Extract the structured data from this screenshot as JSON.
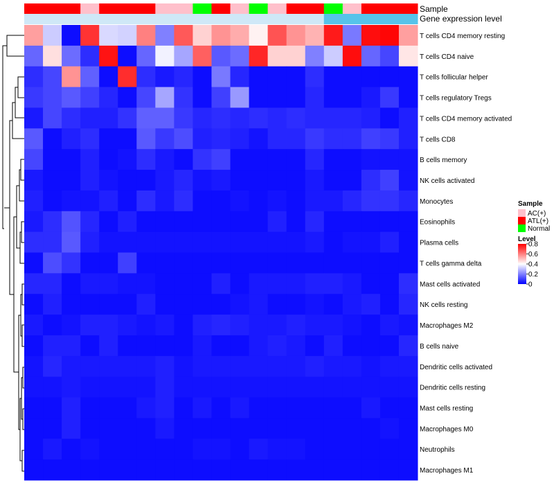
{
  "chart_data": {
    "type": "heatmap",
    "annotation_rows": [
      {
        "label": "Sample",
        "values": [
          "ATL(+)",
          "ATL(+)",
          "ATL(+)",
          "AC(+)",
          "ATL(+)",
          "ATL(+)",
          "ATL(+)",
          "AC(+)",
          "AC(+)",
          "Normal",
          "ATL(+)",
          "AC(+)",
          "Normal",
          "AC(+)",
          "ATL(+)",
          "ATL(+)",
          "Normal",
          "AC(+)",
          "ATL(+)",
          "ATL(+)",
          "ATL(+)"
        ]
      },
      {
        "label": "Gene expression level",
        "values": [
          "low",
          "low",
          "low",
          "low",
          "low",
          "low",
          "low",
          "low",
          "low",
          "low",
          "low",
          "low",
          "low",
          "low",
          "low",
          "low",
          "high",
          "high",
          "high",
          "high",
          "high"
        ]
      }
    ],
    "rows": [
      "T cells CD4 memory resting",
      "T cells CD4 naive",
      "T cells follicular helper",
      "T cells regulatory  Tregs",
      "T cells CD4 memory activated",
      "T cells CD8",
      "B cells memory",
      "NK cells activated",
      "Monocytes",
      "Eosinophils",
      "Plasma cells",
      "T cells gamma delta",
      "Mast cells activated",
      "NK cells resting",
      "Macrophages M2",
      "B cells naive",
      "Dendritic cells activated",
      "Dendritic cells resting",
      "Mast cells resting",
      "Macrophages M0",
      "Neutrophils",
      "Macrophages M1"
    ],
    "values": [
      [
        0.55,
        0.32,
        0.02,
        0.72,
        0.34,
        0.33,
        0.6,
        0.2,
        0.66,
        0.47,
        0.57,
        0.53,
        0.42,
        0.67,
        0.57,
        0.52,
        0.76,
        0.19,
        0.78,
        0.79,
        0.55
      ],
      [
        0.16,
        0.45,
        0.17,
        0.07,
        0.77,
        0.02,
        0.16,
        0.38,
        0.26,
        0.65,
        0.14,
        0.17,
        0.74,
        0.47,
        0.47,
        0.2,
        0.32,
        0.78,
        0.16,
        0.11,
        0.44
      ],
      [
        0.07,
        0.11,
        0.57,
        0.15,
        0.02,
        0.73,
        0.07,
        0.04,
        0.06,
        0.02,
        0.19,
        0.06,
        0.02,
        0.02,
        0.02,
        0.07,
        0.02,
        0.02,
        0.02,
        0.02,
        0.02
      ],
      [
        0.09,
        0.11,
        0.14,
        0.1,
        0.06,
        0.02,
        0.11,
        0.26,
        0.08,
        0.02,
        0.1,
        0.24,
        0.02,
        0.02,
        0.02,
        0.06,
        0.02,
        0.02,
        0.04,
        0.09,
        0.02
      ],
      [
        0.04,
        0.11,
        0.07,
        0.05,
        0.05,
        0.08,
        0.15,
        0.15,
        0.09,
        0.06,
        0.07,
        0.06,
        0.07,
        0.06,
        0.07,
        0.06,
        0.06,
        0.06,
        0.05,
        0.02,
        0.05
      ],
      [
        0.14,
        0.02,
        0.05,
        0.07,
        0.02,
        0.02,
        0.14,
        0.09,
        0.12,
        0.05,
        0.06,
        0.05,
        0.03,
        0.06,
        0.06,
        0.09,
        0.07,
        0.07,
        0.1,
        0.09,
        0.05
      ],
      [
        0.11,
        0.02,
        0.02,
        0.05,
        0.02,
        0.03,
        0.07,
        0.04,
        0.02,
        0.08,
        0.1,
        0.02,
        0.02,
        0.02,
        0.02,
        0.06,
        0.02,
        0.02,
        0.03,
        0.03,
        0.03
      ],
      [
        0.04,
        0.02,
        0.02,
        0.05,
        0.03,
        0.02,
        0.02,
        0.04,
        0.06,
        0.03,
        0.04,
        0.02,
        0.02,
        0.02,
        0.02,
        0.04,
        0.02,
        0.02,
        0.07,
        0.1,
        0.03
      ],
      [
        0.05,
        0.02,
        0.03,
        0.03,
        0.05,
        0.02,
        0.07,
        0.04,
        0.07,
        0.02,
        0.02,
        0.03,
        0.02,
        0.03,
        0.02,
        0.04,
        0.04,
        0.06,
        0.08,
        0.08,
        0.06
      ],
      [
        0.04,
        0.07,
        0.13,
        0.06,
        0.02,
        0.05,
        0.02,
        0.02,
        0.02,
        0.02,
        0.02,
        0.02,
        0.02,
        0.05,
        0.02,
        0.06,
        0.02,
        0.02,
        0.02,
        0.02,
        0.02
      ],
      [
        0.07,
        0.07,
        0.14,
        0.05,
        0.03,
        0.03,
        0.03,
        0.03,
        0.03,
        0.03,
        0.03,
        0.03,
        0.03,
        0.03,
        0.03,
        0.04,
        0.02,
        0.03,
        0.03,
        0.05,
        0.02
      ],
      [
        0.02,
        0.12,
        0.08,
        0.02,
        0.02,
        0.1,
        0.02,
        0.02,
        0.02,
        0.02,
        0.02,
        0.02,
        0.02,
        0.02,
        0.02,
        0.02,
        0.02,
        0.02,
        0.02,
        0.02,
        0.02
      ],
      [
        0.06,
        0.06,
        0.02,
        0.04,
        0.04,
        0.03,
        0.03,
        0.02,
        0.02,
        0.02,
        0.05,
        0.02,
        0.04,
        0.04,
        0.04,
        0.05,
        0.05,
        0.04,
        0.02,
        0.02,
        0.07
      ],
      [
        0.02,
        0.05,
        0.02,
        0.02,
        0.02,
        0.02,
        0.05,
        0.02,
        0.02,
        0.02,
        0.02,
        0.03,
        0.04,
        0.02,
        0.02,
        0.03,
        0.02,
        0.04,
        0.05,
        0.02,
        0.06
      ],
      [
        0.04,
        0.02,
        0.03,
        0.05,
        0.05,
        0.04,
        0.03,
        0.04,
        0.02,
        0.05,
        0.06,
        0.05,
        0.04,
        0.04,
        0.05,
        0.04,
        0.04,
        0.03,
        0.02,
        0.04,
        0.03
      ],
      [
        0.02,
        0.05,
        0.05,
        0.02,
        0.05,
        0.02,
        0.02,
        0.02,
        0.02,
        0.04,
        0.02,
        0.02,
        0.04,
        0.05,
        0.04,
        0.02,
        0.05,
        0.02,
        0.02,
        0.02,
        0.06
      ],
      [
        0.03,
        0.06,
        0.04,
        0.04,
        0.04,
        0.04,
        0.04,
        0.05,
        0.03,
        0.04,
        0.04,
        0.04,
        0.04,
        0.04,
        0.04,
        0.05,
        0.04,
        0.04,
        0.03,
        0.04,
        0.04
      ],
      [
        0.03,
        0.03,
        0.04,
        0.03,
        0.03,
        0.03,
        0.03,
        0.05,
        0.03,
        0.03,
        0.03,
        0.03,
        0.03,
        0.03,
        0.03,
        0.03,
        0.03,
        0.03,
        0.03,
        0.03,
        0.03
      ],
      [
        0.02,
        0.02,
        0.05,
        0.02,
        0.02,
        0.02,
        0.04,
        0.05,
        0.02,
        0.04,
        0.02,
        0.04,
        0.02,
        0.02,
        0.02,
        0.02,
        0.02,
        0.02,
        0.04,
        0.02,
        0.02
      ],
      [
        0.02,
        0.02,
        0.05,
        0.02,
        0.02,
        0.02,
        0.02,
        0.04,
        0.02,
        0.02,
        0.02,
        0.02,
        0.02,
        0.02,
        0.02,
        0.02,
        0.02,
        0.02,
        0.02,
        0.03,
        0.02
      ],
      [
        0.02,
        0.04,
        0.02,
        0.03,
        0.02,
        0.02,
        0.02,
        0.02,
        0.02,
        0.03,
        0.03,
        0.02,
        0.04,
        0.03,
        0.03,
        0.02,
        0.02,
        0.02,
        0.02,
        0.02,
        0.02
      ],
      [
        0.02,
        0.02,
        0.02,
        0.02,
        0.02,
        0.02,
        0.02,
        0.02,
        0.02,
        0.02,
        0.02,
        0.02,
        0.02,
        0.02,
        0.02,
        0.02,
        0.02,
        0.02,
        0.02,
        0.02,
        0.02
      ]
    ],
    "color_scale": {
      "min": 0,
      "max": 0.8,
      "colors": [
        "#0000ff",
        "#ffffff",
        "#ff0000"
      ]
    },
    "legend": {
      "sample_title": "Sample",
      "sample_entries": [
        {
          "label": "AC(+)",
          "color": "#ffc0cb"
        },
        {
          "label": "ATL(+)",
          "color": "#ff0000"
        },
        {
          "label": "Normal",
          "color": "#00ff00"
        }
      ],
      "level_title": "Level",
      "level_ticks": [
        "0.8",
        "0.6",
        "0.4",
        "0.2",
        "0"
      ],
      "level_tick_values": [
        0.8,
        0.6,
        0.4,
        0.2,
        0
      ]
    },
    "expression_colors": {
      "low": "#cfe8f7",
      "high": "#56c3ea"
    }
  }
}
